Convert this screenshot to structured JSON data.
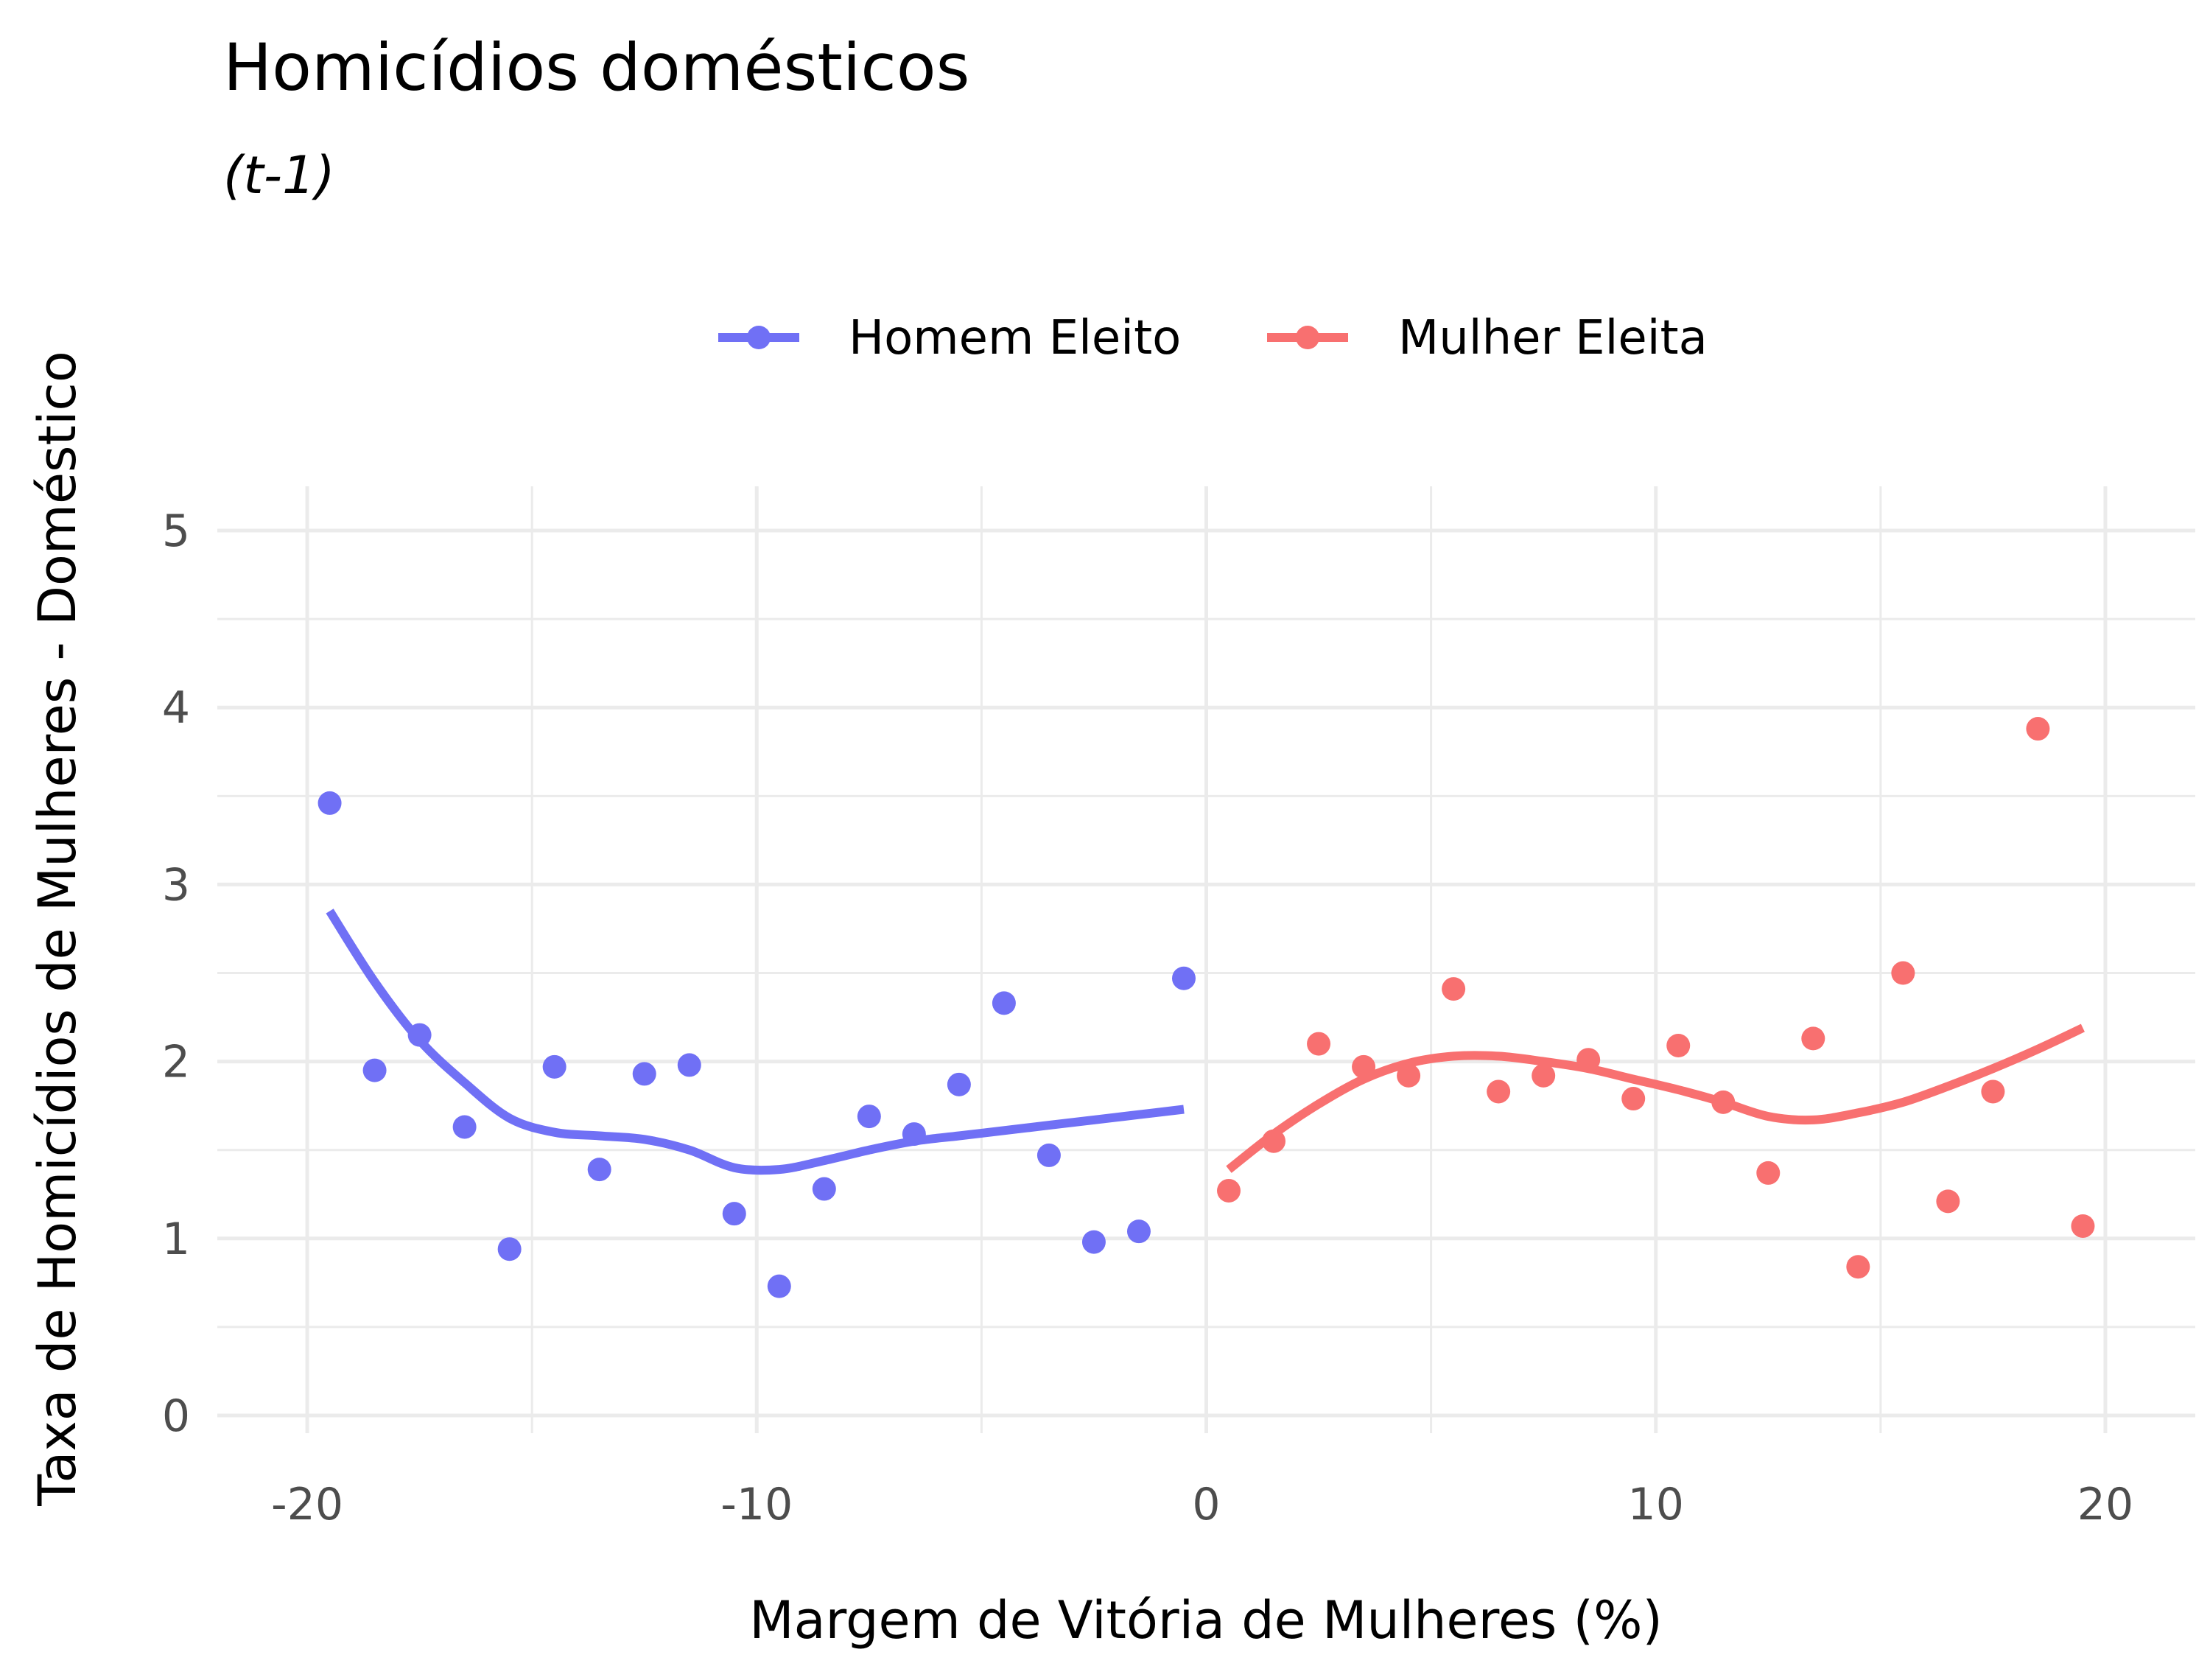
{
  "chart_data": {
    "type": "scatter",
    "title": "Homicídios domésticos",
    "subtitle": "(t-1)",
    "xlabel": "Margem de Vitória de Mulheres (%)",
    "ylabel": "Taxa de Homicídios de Mulheres - Doméstico",
    "xlim": [
      -22,
      22
    ],
    "ylim": [
      -0.1,
      5.25
    ],
    "x_ticks": [
      -20,
      -10,
      0,
      10,
      20
    ],
    "x_tick_labels": [
      "-20",
      "-10",
      "0",
      "10",
      "20"
    ],
    "y_ticks": [
      0,
      1,
      2,
      3,
      4,
      5
    ],
    "y_tick_labels": [
      "0",
      "1",
      "2",
      "3",
      "4",
      "5"
    ],
    "grid": true,
    "legend_position": "top",
    "series": [
      {
        "name": "Homem Eleito",
        "color": "#7070f5",
        "points": [
          [
            -19.5,
            3.46
          ],
          [
            -18.5,
            1.95
          ],
          [
            -17.5,
            2.15
          ],
          [
            -16.5,
            1.63
          ],
          [
            -15.5,
            0.94
          ],
          [
            -14.5,
            1.97
          ],
          [
            -13.5,
            1.39
          ],
          [
            -12.5,
            1.93
          ],
          [
            -11.5,
            1.98
          ],
          [
            -10.5,
            1.14
          ],
          [
            -9.5,
            0.73
          ],
          [
            -8.5,
            1.28
          ],
          [
            -7.5,
            1.69
          ],
          [
            -6.5,
            1.59
          ],
          [
            -5.5,
            1.87
          ],
          [
            -4.5,
            2.33
          ],
          [
            -3.5,
            1.47
          ],
          [
            -2.5,
            0.98
          ],
          [
            -1.5,
            1.04
          ],
          [
            -0.5,
            2.47
          ]
        ],
        "fit": [
          [
            -19.5,
            2.85
          ],
          [
            -18.5,
            2.45
          ],
          [
            -17.5,
            2.12
          ],
          [
            -16.5,
            1.88
          ],
          [
            -15.5,
            1.68
          ],
          [
            -14.5,
            1.6
          ],
          [
            -13.5,
            1.58
          ],
          [
            -12.5,
            1.56
          ],
          [
            -11.5,
            1.5
          ],
          [
            -10.5,
            1.4
          ],
          [
            -9.5,
            1.39
          ],
          [
            -8.5,
            1.44
          ],
          [
            -7.5,
            1.5
          ],
          [
            -6.5,
            1.55
          ],
          [
            -5.5,
            1.58
          ],
          [
            -4.5,
            1.61
          ],
          [
            -3.5,
            1.64
          ],
          [
            -2.5,
            1.67
          ],
          [
            -1.5,
            1.7
          ],
          [
            -0.5,
            1.73
          ]
        ]
      },
      {
        "name": "Mulher Eleita",
        "color": "#f87070",
        "points": [
          [
            0.5,
            1.27
          ],
          [
            1.5,
            1.55
          ],
          [
            2.5,
            2.1
          ],
          [
            3.5,
            1.97
          ],
          [
            4.5,
            1.92
          ],
          [
            5.5,
            2.41
          ],
          [
            6.5,
            1.83
          ],
          [
            7.5,
            1.92
          ],
          [
            8.5,
            2.01
          ],
          [
            9.5,
            1.79
          ],
          [
            10.5,
            2.09
          ],
          [
            11.5,
            1.77
          ],
          [
            12.5,
            1.37
          ],
          [
            13.5,
            2.13
          ],
          [
            14.5,
            0.84
          ],
          [
            15.5,
            2.5
          ],
          [
            16.5,
            1.21
          ],
          [
            17.5,
            1.83
          ],
          [
            18.5,
            3.88
          ],
          [
            19.5,
            1.07
          ]
        ],
        "fit": [
          [
            0.5,
            1.39
          ],
          [
            1.5,
            1.59
          ],
          [
            2.5,
            1.76
          ],
          [
            3.5,
            1.9
          ],
          [
            4.5,
            1.99
          ],
          [
            5.5,
            2.03
          ],
          [
            6.5,
            2.03
          ],
          [
            7.5,
            2.0
          ],
          [
            8.5,
            1.96
          ],
          [
            9.5,
            1.9
          ],
          [
            10.5,
            1.84
          ],
          [
            11.5,
            1.77
          ],
          [
            12.5,
            1.69
          ],
          [
            13.5,
            1.67
          ],
          [
            14.5,
            1.71
          ],
          [
            15.5,
            1.77
          ],
          [
            16.5,
            1.86
          ],
          [
            17.5,
            1.96
          ],
          [
            18.5,
            2.07
          ],
          [
            19.5,
            2.19
          ]
        ]
      }
    ]
  }
}
